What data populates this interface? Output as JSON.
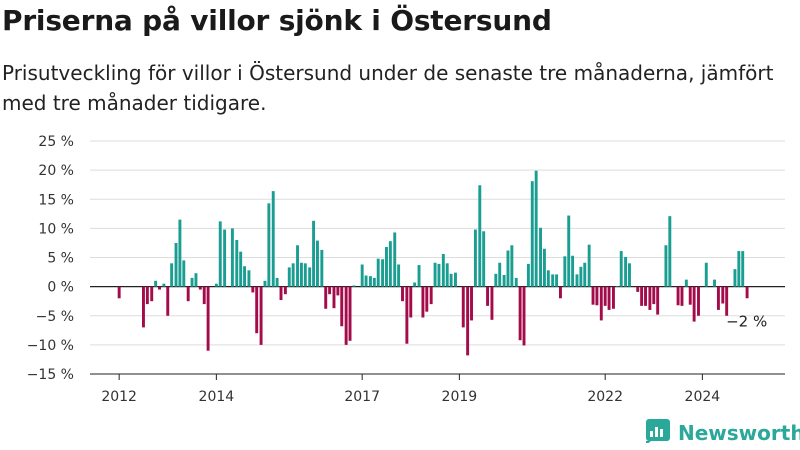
{
  "title": "Priserna på villor sjönk i Östersund",
  "subtitle": "Prisutveckling för villor i Östersund under de senaste tre månaderna, jämfört med tre månader tidigare.",
  "brand": {
    "name": "Newsworthy"
  },
  "colors": {
    "positive": "#1a9e92",
    "negative": "#a30b4b",
    "grid": "#dddddd",
    "axis": "#222222",
    "brand": "#2aa89a"
  },
  "chart_data": {
    "type": "bar",
    "title": "Priserna på villor sjönk i Östersund",
    "ylabel": "",
    "xlabel": "",
    "ylim": [
      -15,
      25
    ],
    "yticks": [
      25,
      20,
      15,
      10,
      5,
      0,
      -5,
      -10,
      -15
    ],
    "ytick_labels": [
      "25 %",
      "20 %",
      "15 %",
      "10 %",
      "5 %",
      "0 %",
      "−5 %",
      "−10 %",
      "−15 %"
    ],
    "xlim": [
      2011.4,
      2025.7
    ],
    "xticks": [
      2012,
      2014,
      2017,
      2019,
      2022,
      2024
    ],
    "xtick_labels": [
      "2012",
      "2014",
      "2017",
      "2019",
      "2022",
      "2024"
    ],
    "grid": true,
    "last_label": "−2 %",
    "x": [
      2012.0,
      2012.5,
      2012.58,
      2012.67,
      2012.75,
      2012.83,
      2012.92,
      2013.0,
      2013.08,
      2013.17,
      2013.25,
      2013.33,
      2013.42,
      2013.5,
      2013.58,
      2013.67,
      2013.75,
      2013.83,
      2013.92,
      2014.0,
      2014.08,
      2014.17,
      2014.25,
      2014.33,
      2014.42,
      2014.5,
      2014.58,
      2014.67,
      2014.75,
      2014.83,
      2014.92,
      2015.0,
      2015.08,
      2015.17,
      2015.25,
      2015.33,
      2015.42,
      2015.5,
      2015.58,
      2015.67,
      2015.75,
      2015.83,
      2015.92,
      2016.0,
      2016.08,
      2016.17,
      2016.25,
      2016.33,
      2016.42,
      2016.5,
      2016.58,
      2016.67,
      2016.75,
      2016.83,
      2016.92,
      2017.0,
      2017.08,
      2017.17,
      2017.25,
      2017.33,
      2017.42,
      2017.5,
      2017.58,
      2017.67,
      2017.75,
      2017.83,
      2017.92,
      2018.0,
      2018.08,
      2018.17,
      2018.25,
      2018.33,
      2018.42,
      2018.5,
      2018.58,
      2018.67,
      2018.75,
      2018.83,
      2018.92,
      2019.0,
      2019.08,
      2019.17,
      2019.25,
      2019.33,
      2019.42,
      2019.5,
      2019.58,
      2019.67,
      2019.75,
      2019.83,
      2019.92,
      2020.0,
      2020.08,
      2020.17,
      2020.25,
      2020.33,
      2020.42,
      2020.5,
      2020.58,
      2020.67,
      2020.75,
      2020.83,
      2020.92,
      2021.0,
      2021.08,
      2021.17,
      2021.25,
      2021.33,
      2021.42,
      2021.5,
      2021.58,
      2021.67,
      2021.75,
      2021.83,
      2021.92,
      2022.0,
      2022.08,
      2022.17,
      2022.25,
      2022.33,
      2022.42,
      2022.5,
      2022.58,
      2022.67,
      2022.75,
      2022.83,
      2022.92,
      2023.0,
      2023.08,
      2023.17,
      2023.25,
      2023.33,
      2023.42,
      2023.5,
      2023.58,
      2023.67,
      2023.75,
      2023.83,
      2023.92,
      2024.0,
      2024.08,
      2024.17,
      2024.25,
      2024.33,
      2024.42,
      2024.5,
      2024.58,
      2024.67,
      2024.75,
      2024.83,
      2024.92
    ],
    "values": [
      -2,
      -7,
      -3,
      -2.5,
      1,
      -0.5,
      0.5,
      -5,
      4,
      7.5,
      11.5,
      4.5,
      -2.5,
      1.5,
      2.3,
      -0.5,
      -3,
      -11,
      0,
      0.5,
      11.2,
      9.8,
      0,
      10,
      8,
      6,
      3.5,
      2.8,
      -1,
      -8,
      -10,
      1,
      14.3,
      16.4,
      1.5,
      -2.3,
      -1.3,
      3.3,
      4,
      7.1,
      4.1,
      4,
      3.3,
      11.3,
      7.9,
      6.3,
      -3.8,
      -1.3,
      -3.7,
      -1.5,
      -6.8,
      -10,
      -9.3,
      0.2,
      0,
      3.8,
      1.9,
      1.8,
      1.5,
      4.8,
      4.7,
      6.8,
      7.8,
      9.3,
      3.8,
      -2.5,
      -9.8,
      -5.3,
      0.7,
      3.7,
      -5.3,
      -4.3,
      -3,
      4.1,
      3.9,
      5.6,
      4,
      2.2,
      2.4,
      0,
      -7,
      -11.8,
      -5.8,
      9.8,
      17.4,
      9.5,
      -3.3,
      -5.7,
      2.2,
      4.1,
      2,
      6.2,
      7.1,
      1.5,
      -9.2,
      -10.1,
      3.9,
      18.1,
      19.9,
      10.1,
      6.5,
      2.8,
      2.1,
      2.1,
      -2,
      5.2,
      12.2,
      5.3,
      2.1,
      3.4,
      4.1,
      7.2,
      -3.1,
      -3.2,
      -5.8,
      -3.3,
      -4,
      -3.8,
      0.1,
      6.1,
      5.1,
      4,
      0,
      -0.9,
      -3.3,
      -3.3,
      -4,
      -3,
      -4.8,
      0,
      7.1,
      12.1,
      0,
      -3.2,
      -3.3,
      1.2,
      -3.1,
      -6,
      -5,
      0,
      4.1,
      0,
      1.2,
      -4,
      -2.9,
      -5,
      0,
      3,
      6.1,
      6.1,
      -2
    ]
  }
}
